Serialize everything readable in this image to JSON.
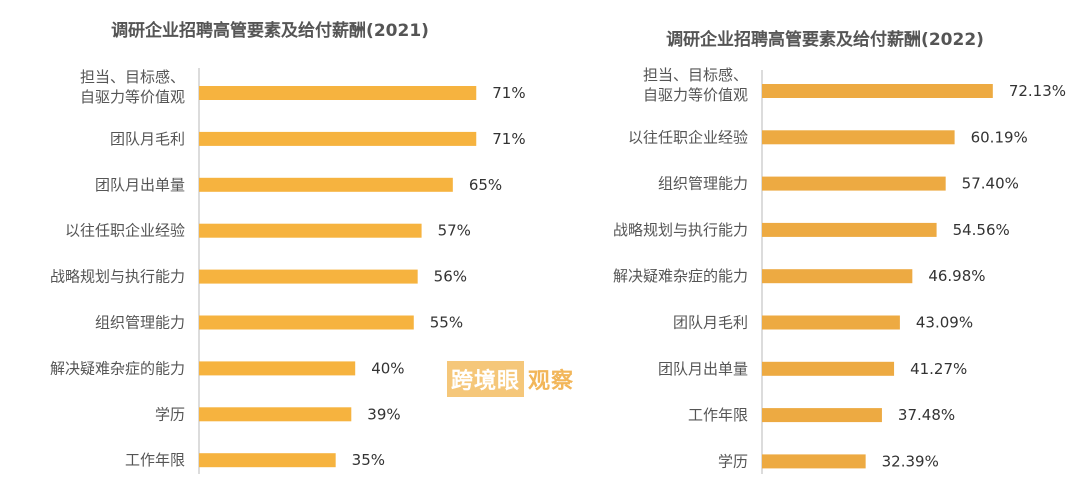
{
  "watermark": {
    "part1": "跨境眼",
    "part2": "观察"
  },
  "colors": {
    "bar_left": "#F6B33F",
    "bar_right": "#EDAA42"
  },
  "chart_data": [
    {
      "type": "bar",
      "orientation": "horizontal",
      "title": "调研企业招聘高管要素及给付薪酬(2021)",
      "categories": [
        [
          "担当、目标感、",
          "自驱力等价值观"
        ],
        "团队月毛利",
        "团队月出单量",
        "以往任职企业经验",
        "战略规划与执行能力",
        "组织管理能力",
        "解决疑难杂症的能力",
        "学历",
        "工作年限"
      ],
      "values": [
        71,
        71,
        65,
        57,
        56,
        55,
        40,
        39,
        35
      ],
      "labels": [
        "71%",
        "71%",
        "65%",
        "57%",
        "56%",
        "55%",
        "40%",
        "39%",
        "35%"
      ],
      "xlim": [
        0,
        100
      ],
      "grid": false
    },
    {
      "type": "bar",
      "orientation": "horizontal",
      "title": "调研企业招聘高管要素及给付薪酬(2022)",
      "categories": [
        [
          "担当、目标感、",
          "自驱力等价值观"
        ],
        "以往任职企业经验",
        "组织管理能力",
        "战略规划与执行能力",
        "解决疑难杂症的能力",
        "团队月毛利",
        "团队月出单量",
        "工作年限",
        "学历"
      ],
      "values": [
        72.13,
        60.19,
        57.4,
        54.56,
        46.98,
        43.09,
        41.27,
        37.48,
        32.39
      ],
      "labels": [
        "72.13%",
        "60.19%",
        "57.40%",
        "54.56%",
        "46.98%",
        "43.09%",
        "41.27%",
        "37.48%",
        "32.39%"
      ],
      "xlim": [
        0,
        100
      ],
      "grid": false
    }
  ]
}
